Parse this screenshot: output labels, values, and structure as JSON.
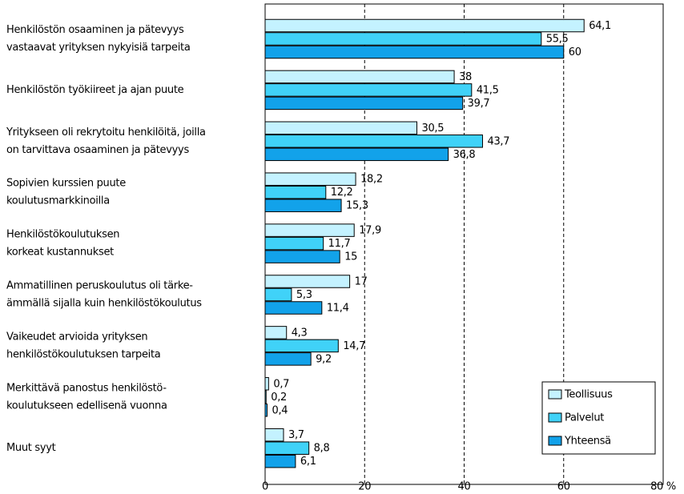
{
  "chart_data": {
    "type": "bar",
    "orientation": "horizontal",
    "categories": [
      "Henkilöstön osaaminen ja pätevyys\nvastaavat yrityksen nykyisiä tarpeita",
      "Henkilöstön työkiireet ja ajan puute",
      "Yritykseen oli rekrytoitu henkilöitä, joilla\non tarvittava osaaminen ja pätevyys",
      "Sopivien kurssien puute\nkoulutusmarkkinoilla",
      "Henkilöstökoulutuksen\nkorkeat kustannukset",
      "Ammatillinen peruskoulutus oli tärke-\nämmällä sijalla kuin henkilöstökoulutus",
      "Vaikeudet arvioida yrityksen\nhenkilöstökoulutuksen tarpeita",
      "Merkittävä panostus henkilöstö-\nkoulutukseen edellisenä vuonna",
      "Muut syyt"
    ],
    "series": [
      {
        "name": "Teollisuus",
        "color": "#c4f2ff",
        "values": [
          64.1,
          38,
          30.5,
          18.2,
          17.9,
          17,
          4.3,
          0.7,
          3.7
        ],
        "value_labels": [
          "64,1",
          "38",
          "30,5",
          "18,2",
          "17,9",
          "17",
          "4,3",
          "0,7",
          "3,7"
        ]
      },
      {
        "name": "Palvelut",
        "color": "#40d2f8",
        "values": [
          55.5,
          41.5,
          43.7,
          12.2,
          11.7,
          5.3,
          14.7,
          0.2,
          8.8
        ],
        "value_labels": [
          "55,5",
          "41,5",
          "43,7",
          "12,2",
          "11,7",
          "5,3",
          "14,7",
          "0,2",
          "8,8"
        ]
      },
      {
        "name": "Yhteensä",
        "color": "#12a2ea",
        "values": [
          60,
          39.7,
          36.8,
          15.3,
          15,
          11.4,
          9.2,
          0.4,
          6.1
        ],
        "value_labels": [
          "60",
          "39,7",
          "36,8",
          "15,3",
          "15",
          "11,4",
          "9,2",
          "0,4",
          "6,1"
        ]
      }
    ],
    "xlim": [
      0,
      80
    ],
    "xticks": [
      0,
      20,
      40,
      60,
      {
        "value": 80,
        "label": "80 %"
      }
    ],
    "grid": true,
    "legend": "lower right"
  }
}
